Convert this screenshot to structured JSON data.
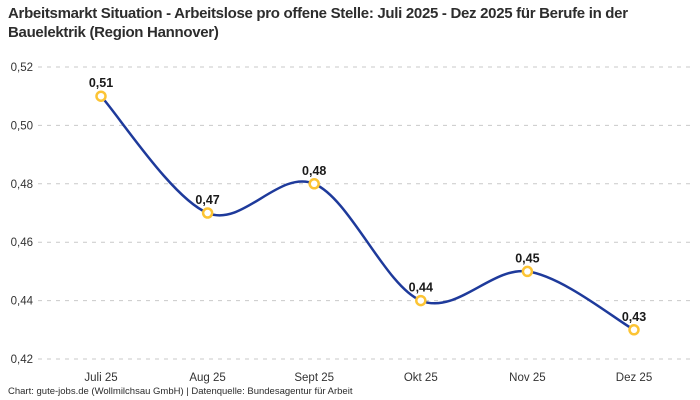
{
  "header": {
    "title": "Arbeitsmarkt Situation - Arbeitslose pro offene Stelle: Juli 2025 - Dez 2025 für Berufe in der Bauelektrik (Region Hannover)"
  },
  "footer": {
    "attribution": "Chart: gute-jobs.de (Wollmilchsau GmbH) | Datenquelle: Bundesagentur für Arbeit"
  },
  "chart_data": {
    "type": "line",
    "title": "Arbeitsmarkt Situation - Arbeitslose pro offene Stelle: Juli 2025 - Dez 2025 für Berufe in der Bauelektrik (Region Hannover)",
    "categories": [
      "Juli 25",
      "Aug 25",
      "Sept 25",
      "Okt 25",
      "Nov 25",
      "Dez 25"
    ],
    "values": [
      0.51,
      0.47,
      0.48,
      0.44,
      0.45,
      0.43
    ],
    "data_labels": [
      "0,51",
      "0,47",
      "0,48",
      "0,44",
      "0,45",
      "0,43"
    ],
    "y_ticks": [
      0.42,
      0.44,
      0.46,
      0.48,
      0.5,
      0.52
    ],
    "y_tick_labels": [
      "0,42",
      "0,44",
      "0,46",
      "0,48",
      "0,50",
      "0,52"
    ],
    "ylim": [
      0.42,
      0.52
    ],
    "xlabel": "",
    "ylabel": "",
    "grid": "horizontal-dashed",
    "legend": "none",
    "line_style": "smooth",
    "marker": "open-circle",
    "colors": {
      "line": "#1e3a9b",
      "marker_stroke": "#fcc434",
      "marker_fill": "#ffffff",
      "grid": "#c9c9c9",
      "axis_text": "#333333",
      "data_label": "#1a1a1a",
      "title": "#2d2d2d"
    }
  }
}
